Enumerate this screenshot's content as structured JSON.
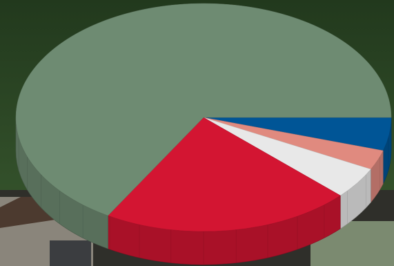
{
  "chart_data": {
    "type": "pie",
    "style": "3d",
    "title": "",
    "slices": [
      {
        "value": 4.7,
        "color": "#005596"
      },
      {
        "value": 2.8,
        "color": "#E08A7F"
      },
      {
        "value": 4.5,
        "color": "#E8E8E8"
      },
      {
        "value": 21.5,
        "color": "#D31532"
      },
      {
        "value": 66.5,
        "color": "#6E8B72"
      }
    ]
  },
  "background": {
    "grass_color": "#2d4a25",
    "ground_color": "#2f2f2a"
  }
}
